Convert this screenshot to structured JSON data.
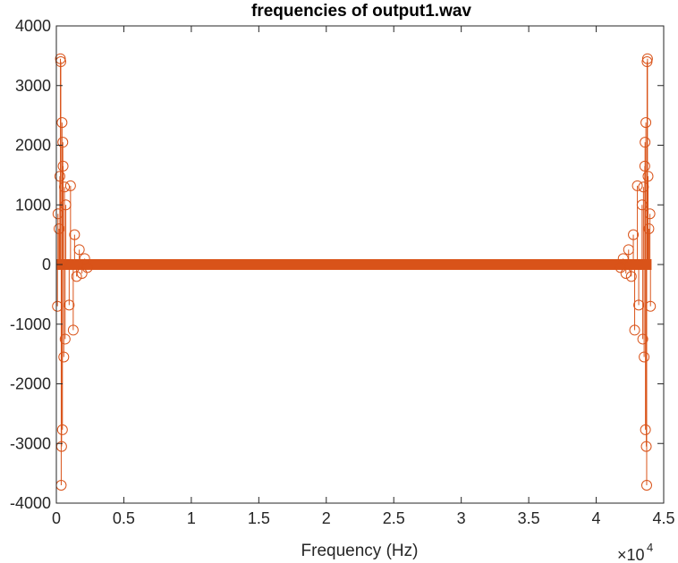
{
  "chart_data": {
    "type": "scatter",
    "title": "frequencies of output1.wav",
    "xlabel": "Frequency (Hz)",
    "ylabel": "",
    "xlim": [
      0,
      45000
    ],
    "ylim": [
      -4000,
      4000
    ],
    "x_scale_label": "×10",
    "x_scale_exponent": "4",
    "x_ticks": [
      0,
      5000,
      10000,
      15000,
      20000,
      25000,
      30000,
      35000,
      40000,
      45000
    ],
    "x_tick_labels": [
      "0",
      "0.5",
      "1",
      "1.5",
      "2",
      "2.5",
      "3",
      "3.5",
      "4",
      "4.5"
    ],
    "y_ticks": [
      -4000,
      -3000,
      -2000,
      -1000,
      0,
      1000,
      2000,
      3000,
      4000
    ],
    "y_tick_labels": [
      "-4000",
      "-3000",
      "-2000",
      "-1000",
      "0",
      "1000",
      "2000",
      "3000",
      "4000"
    ],
    "grid": false,
    "marker": "circle",
    "stem": true,
    "color": "#D95319",
    "series": [
      {
        "x": [
          300,
          330,
          360,
          420,
          480,
          390,
          450,
          500,
          550,
          260,
          600,
          650,
          700,
          120,
          80,
          200,
          950,
          1050,
          1250,
          1350,
          1500,
          1700,
          1900,
          2100,
          2300,
          43800,
          43770,
          43740,
          43680,
          43620,
          43710,
          43650,
          43600,
          43550,
          43840,
          43500,
          43450,
          43400,
          43980,
          44020,
          43900,
          43150,
          43050,
          42850,
          42750,
          42600,
          42400,
          42200,
          42000,
          41800
        ],
        "y": [
          3450,
          3400,
          -3700,
          2380,
          2050,
          -3050,
          -2770,
          1650,
          -1550,
          1480,
          1300,
          -1250,
          1000,
          850,
          -700,
          600,
          -680,
          1320,
          -1100,
          500,
          -200,
          250,
          -150,
          100,
          -50,
          3450,
          3400,
          -3700,
          2380,
          2050,
          -3050,
          -2770,
          1650,
          -1550,
          1480,
          1300,
          -1250,
          1000,
          850,
          -700,
          600,
          -680,
          1320,
          -1100,
          500,
          -200,
          250,
          -150,
          100,
          -50
        ]
      }
    ]
  }
}
